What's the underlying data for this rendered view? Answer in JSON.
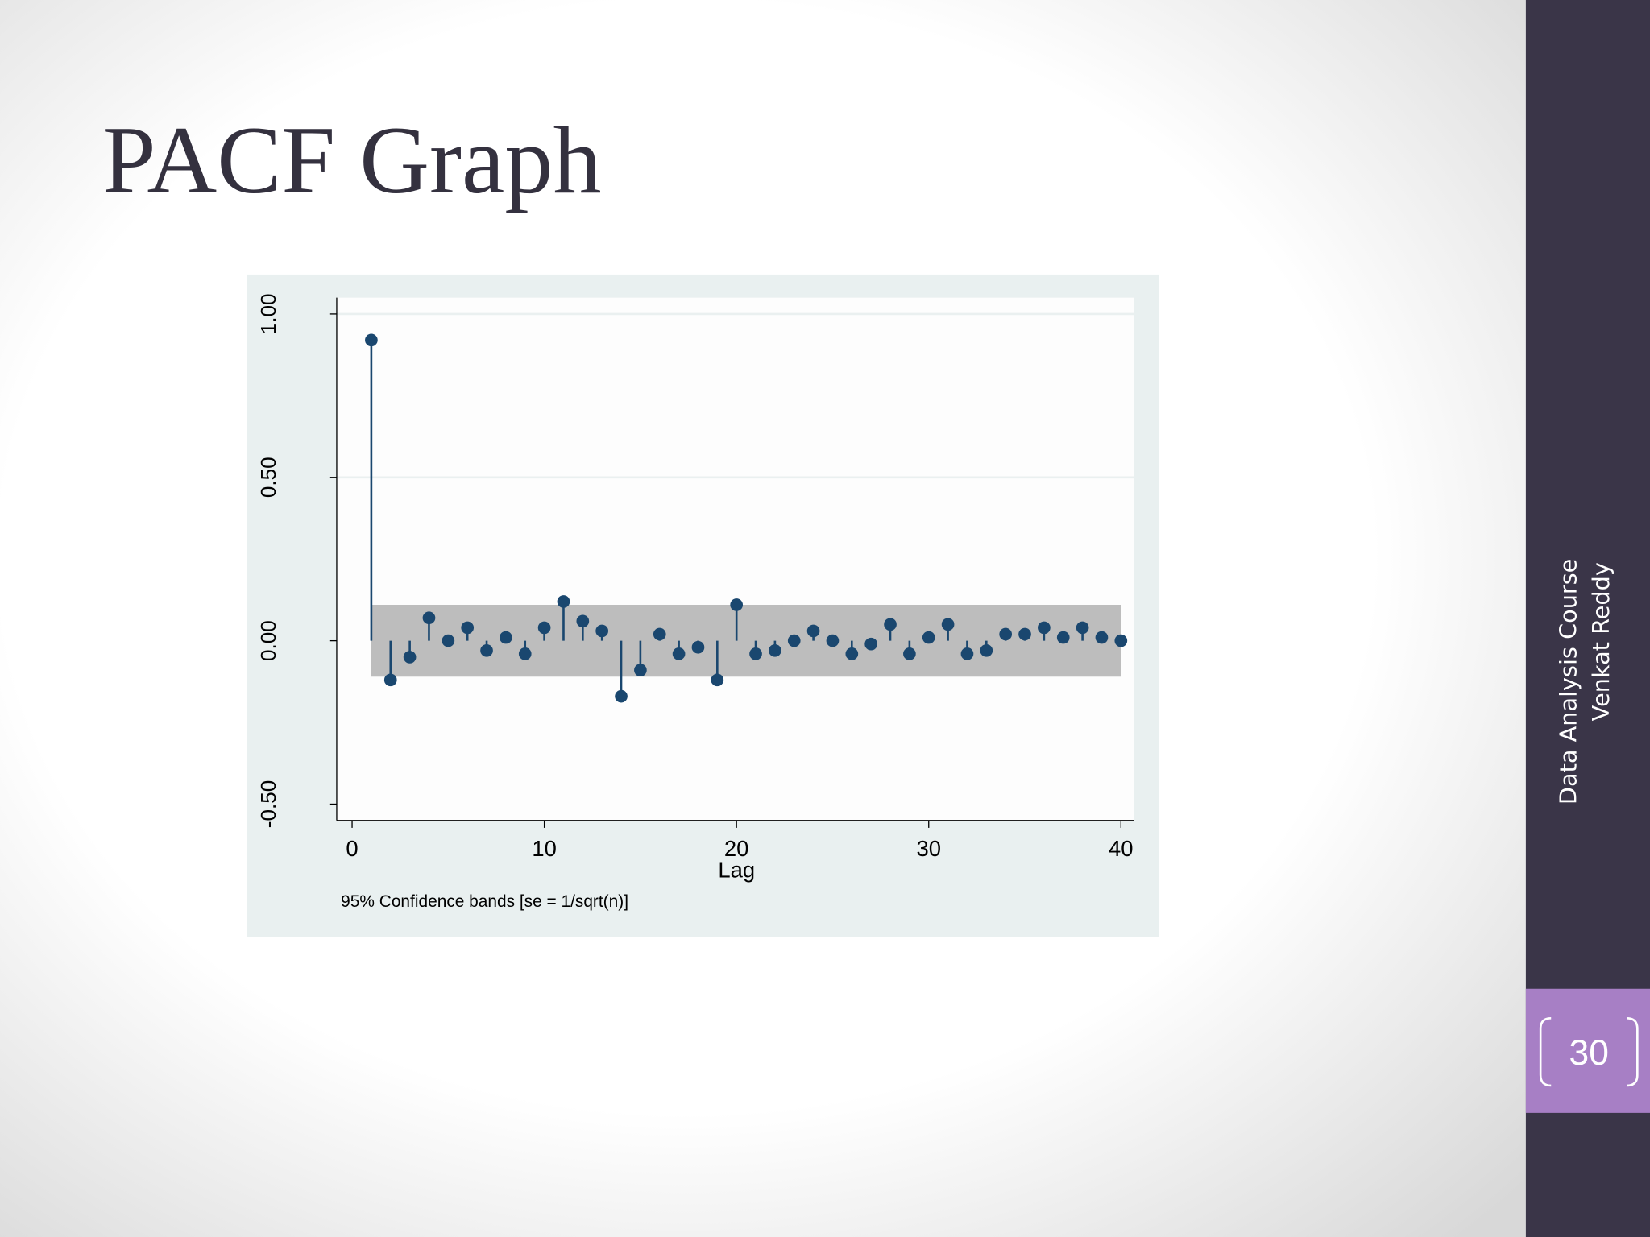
{
  "slide": {
    "title": "PACF Graph",
    "sidebar": [
      "Data Analysis Course",
      "Venkat Reddy"
    ],
    "page_number": 30
  },
  "chart_data": {
    "type": "stem",
    "x": [
      1,
      2,
      3,
      4,
      5,
      6,
      7,
      8,
      9,
      10,
      11,
      12,
      13,
      14,
      15,
      16,
      17,
      18,
      19,
      20,
      21,
      22,
      23,
      24,
      25,
      26,
      27,
      28,
      29,
      30,
      31,
      32,
      33,
      34,
      35,
      36,
      37,
      38,
      39,
      40
    ],
    "values": [
      0.92,
      -0.12,
      -0.05,
      0.07,
      0.0,
      0.04,
      -0.03,
      0.01,
      -0.04,
      0.04,
      0.12,
      0.06,
      0.03,
      -0.17,
      -0.09,
      0.02,
      -0.04,
      -0.02,
      -0.12,
      0.11,
      -0.04,
      -0.03,
      0.0,
      0.03,
      0.0,
      -0.04,
      -0.01,
      0.05,
      -0.04,
      0.01,
      0.05,
      -0.04,
      -0.03,
      0.02,
      0.02,
      0.04,
      0.01,
      0.04,
      0.01,
      0.0
    ],
    "color": "#1a476f",
    "confidence_band": 0.11,
    "band_color": "#bdbdbd",
    "xlabel": "Lag",
    "note": "95% Confidence bands [se = 1/sqrt(n)]",
    "xlim": [
      -0.8,
      40.7
    ],
    "xticks": [
      0,
      10,
      20,
      30,
      40
    ],
    "ylim": [
      -0.55,
      1.05
    ],
    "yticks": [
      {
        "value": -0.5,
        "label": "-0.50"
      },
      {
        "value": 0,
        "label": "0.00"
      },
      {
        "value": 0.5,
        "label": "0.50"
      },
      {
        "value": 1,
        "label": "1.00"
      }
    ],
    "grid": true
  }
}
